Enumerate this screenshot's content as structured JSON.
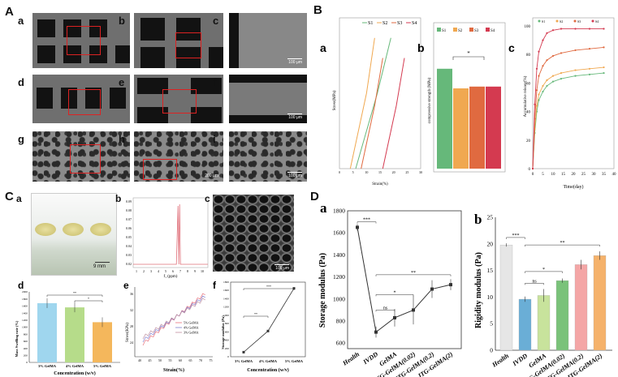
{
  "panelA": {
    "label": "A",
    "subs": [
      "a",
      "b",
      "c",
      "d",
      "e",
      "f",
      "g",
      "h",
      "i"
    ],
    "scalebars": {
      "c": "100 μm",
      "f": "100 μm",
      "i": "100 μm",
      "h": "200 μm"
    }
  },
  "panelB": {
    "label": "B",
    "subs": [
      "a",
      "b",
      "c"
    ],
    "legend": [
      "S1",
      "S2",
      "S3",
      "S4"
    ],
    "colors": [
      "#66b87a",
      "#f0a850",
      "#e06a40",
      "#d43a50"
    ],
    "a": {
      "ylabel": "Stress(MPa)",
      "xlabel": "Strain(%)",
      "xticks": [
        "0",
        "5",
        "10",
        "15",
        "20",
        "25",
        "30"
      ]
    },
    "b": {
      "ylabel": "compressive strength (MPa)",
      "sig": "*",
      "values": [
        28,
        22.5,
        23,
        23
      ]
    },
    "c": {
      "ylabel": "Accumulative release(%)",
      "xlabel": "Time(day)",
      "xticks": [
        "0",
        "5",
        "10",
        "15",
        "20",
        "25",
        "30",
        "35",
        "40"
      ],
      "yticks": [
        "0",
        "20",
        "40",
        "60",
        "80",
        "100"
      ]
    }
  },
  "panelC": {
    "label": "C",
    "subs": [
      "a",
      "b",
      "c",
      "d",
      "e",
      "f"
    ],
    "a_scale": "9 mm",
    "c_scale": "100 μm",
    "b": {
      "xlabel": "f₁ (ppm)",
      "yticks": [
        "0.09",
        "0.08",
        "0.07",
        "0.06",
        "0.05",
        "0.04",
        "0.03",
        "0.02"
      ],
      "xticks": [
        "1",
        "2",
        "3",
        "4",
        "5",
        "6",
        "7",
        "8",
        "9",
        "10"
      ]
    },
    "d": {
      "ylabel": "Mass Swelling rate (%)",
      "xlabel": "Concentration (w/v)",
      "categories": [
        "3% GelMA",
        "4% GelMA",
        "5% GelMA"
      ],
      "values": [
        1680,
        1560,
        1140
      ],
      "colors": [
        "#9fd6ee",
        "#b6dc8a",
        "#f4b75c"
      ],
      "yticks": [
        "0",
        "200",
        "400",
        "600",
        "800",
        "1000",
        "1200",
        "1400",
        "1600",
        "1800",
        "2000"
      ],
      "sig": [
        "**",
        "*"
      ]
    },
    "e": {
      "ylabel": "Stress(KPa)",
      "xlabel": "Strain(%)",
      "legend": [
        "5% GelMA",
        "4% GelMA",
        "3% GelMA"
      ],
      "colors": [
        "#e8707a",
        "#8080d0",
        "#c090a0"
      ],
      "xticks": [
        "40",
        "45",
        "50",
        "55",
        "60",
        "65",
        "70",
        "75"
      ],
      "yticks": [
        "24",
        "28",
        "32",
        "36"
      ]
    },
    "f": {
      "ylabel": "Storage modulus (Pa)",
      "xlabel": "Concentration (w/v)",
      "categories": [
        "3% GelMA",
        "4% GelMA",
        "5% GelMA"
      ],
      "values": [
        110,
        620,
        1650
      ],
      "yticks": [
        "0",
        "200",
        "400",
        "600",
        "800",
        "1000",
        "1200",
        "1400",
        "1600",
        "1800"
      ],
      "sig": [
        "**",
        "***"
      ]
    }
  },
  "panelD": {
    "label": "D",
    "a": {
      "sub": "a",
      "ylabel": "Storage modulus (Pa)",
      "categories": [
        "Health",
        "IVDD",
        "GelMA",
        "JTG-GelMA(0.02)",
        "JTG-GelMA(0.2)",
        "JTG-GelMA(2)"
      ],
      "values": [
        1650,
        700,
        830,
        900,
        1090,
        1130
      ],
      "errors": [
        30,
        50,
        80,
        130,
        80,
        50
      ],
      "yticks": [
        "600",
        "800",
        "1000",
        "1200",
        "1400",
        "1600",
        "1800"
      ],
      "ylim": [
        550,
        1800
      ],
      "sig": [
        "***",
        "ns",
        "*",
        "**"
      ]
    },
    "b": {
      "sub": "b",
      "ylabel": "Rigidity modulus (Pa)",
      "categories": [
        "Health",
        "IVDD",
        "GelMA",
        "JTG-GelMA(0.02)",
        "JTG-GelMA(0.2)",
        "JTG-GelMA(2)"
      ],
      "values": [
        19.8,
        9.6,
        10.3,
        13.1,
        16.1,
        17.8
      ],
      "errors": [
        0.3,
        0.5,
        1.2,
        0.4,
        0.9,
        0.8
      ],
      "colors": [
        "#e6e6e6",
        "#6aaed6",
        "#c8e39c",
        "#7ac27a",
        "#f4a6a6",
        "#f5b26b"
      ],
      "yticks": [
        "0",
        "5",
        "10",
        "15",
        "20",
        "25"
      ],
      "ylim": [
        0,
        25
      ],
      "sig": [
        "***",
        "ns",
        "*",
        "**"
      ]
    }
  },
  "chart_data": [
    {
      "type": "line",
      "title": "B a",
      "xlabel": "Strain(%)",
      "ylabel": "Stress(MPa)",
      "series": [
        {
          "name": "S1",
          "x": [
            6,
            14,
            19
          ],
          "y": [
            0,
            30,
            52
          ]
        },
        {
          "name": "S2",
          "x": [
            4,
            10,
            13
          ],
          "y": [
            0,
            30,
            52
          ]
        },
        {
          "name": "S3",
          "x": [
            8,
            13,
            16
          ],
          "y": [
            0,
            25,
            44
          ]
        },
        {
          "name": "S4",
          "x": [
            16,
            21,
            24
          ],
          "y": [
            0,
            25,
            44
          ]
        }
      ]
    },
    {
      "type": "bar",
      "title": "B b",
      "categories": [
        "S1",
        "S2",
        "S3",
        "S4"
      ],
      "values": [
        28,
        22.5,
        23,
        23
      ],
      "ylabel": "compressive strength (MPa)"
    },
    {
      "type": "line",
      "title": "B c",
      "xlabel": "Time(day)",
      "ylabel": "Accumulative release(%)",
      "x": [
        0,
        1,
        2,
        3,
        5,
        7,
        10,
        14,
        21,
        28,
        35
      ],
      "series": [
        {
          "name": "S1",
          "values": [
            0,
            25,
            40,
            48,
            54,
            58,
            61,
            63,
            65,
            66,
            67
          ]
        },
        {
          "name": "S2",
          "values": [
            0,
            28,
            44,
            52,
            58,
            62,
            65,
            67,
            69,
            70,
            71
          ]
        },
        {
          "name": "S3",
          "values": [
            0,
            35,
            55,
            65,
            72,
            76,
            79,
            81,
            83,
            84,
            85
          ]
        },
        {
          "name": "S4",
          "values": [
            0,
            45,
            70,
            82,
            90,
            95,
            97,
            98,
            98,
            98,
            98
          ]
        }
      ]
    },
    {
      "type": "bar",
      "title": "C d",
      "categories": [
        "3% GelMA",
        "4% GelMA",
        "5% GelMA"
      ],
      "values": [
        1680,
        1560,
        1140
      ]
    },
    {
      "type": "line",
      "title": "C f",
      "categories": [
        "3% GelMA",
        "4% GelMA",
        "5% GelMA"
      ],
      "values": [
        110,
        620,
        1650
      ]
    },
    {
      "type": "line",
      "title": "D a",
      "categories": [
        "Health",
        "IVDD",
        "GelMA",
        "JTG-GelMA(0.02)",
        "JTG-GelMA(0.2)",
        "JTG-GelMA(2)"
      ],
      "values": [
        1650,
        700,
        830,
        900,
        1090,
        1130
      ]
    },
    {
      "type": "bar",
      "title": "D b",
      "categories": [
        "Health",
        "IVDD",
        "GelMA",
        "JTG-GelMA(0.02)",
        "JTG-GelMA(0.2)",
        "JTG-GelMA(2)"
      ],
      "values": [
        19.8,
        9.6,
        10.3,
        13.1,
        16.1,
        17.8
      ]
    }
  ]
}
